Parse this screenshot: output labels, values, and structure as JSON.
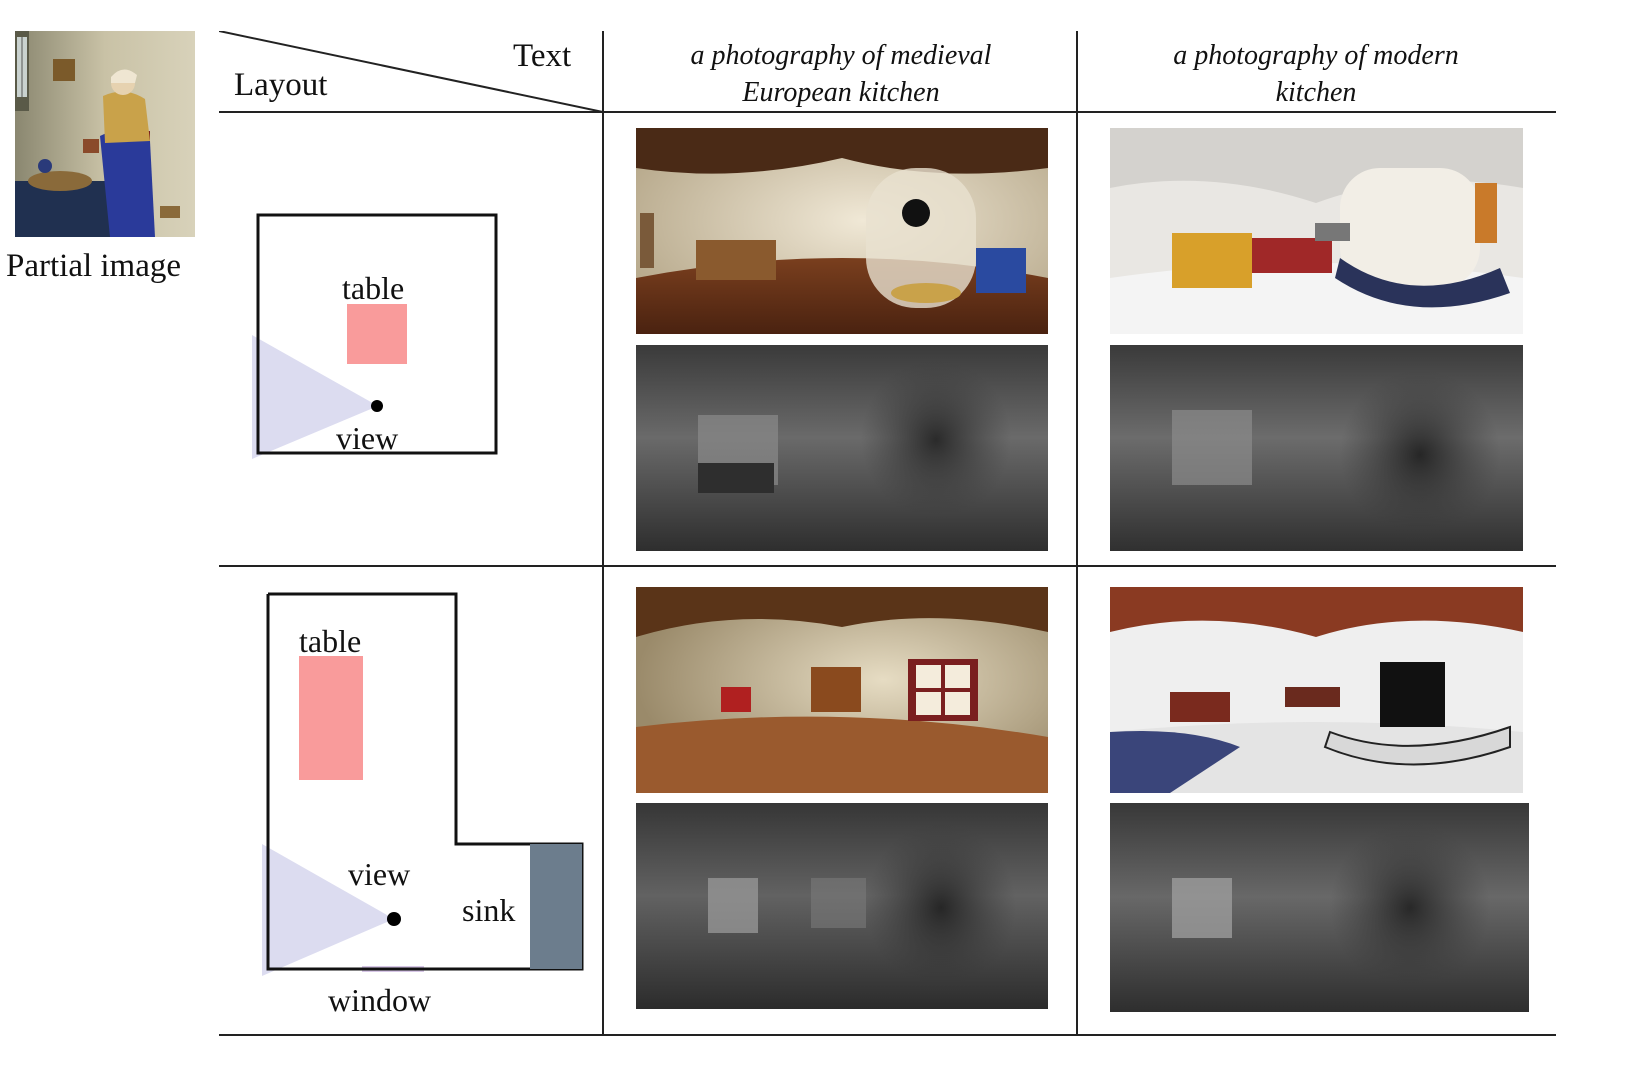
{
  "figure": {
    "partial_image_label": "Partial image",
    "header": {
      "text_label": "Text",
      "layout_label": "Layout",
      "columns": [
        {
          "line1": "a photography of medieval",
          "line2": "European kitchen"
        },
        {
          "line1": "a photography of modern",
          "line2": "kitchen"
        }
      ]
    },
    "rows": [
      {
        "labels": {
          "table": "table",
          "view": "view"
        }
      },
      {
        "labels": {
          "table": "table",
          "view": "view",
          "sink": "sink",
          "window": "window"
        }
      }
    ],
    "colors": {
      "table": "#f99b9b",
      "view_cone": "#dcdcf0",
      "sink": "#6c7d8d",
      "window": "#d7c7e6",
      "rule": "#222222"
    }
  }
}
